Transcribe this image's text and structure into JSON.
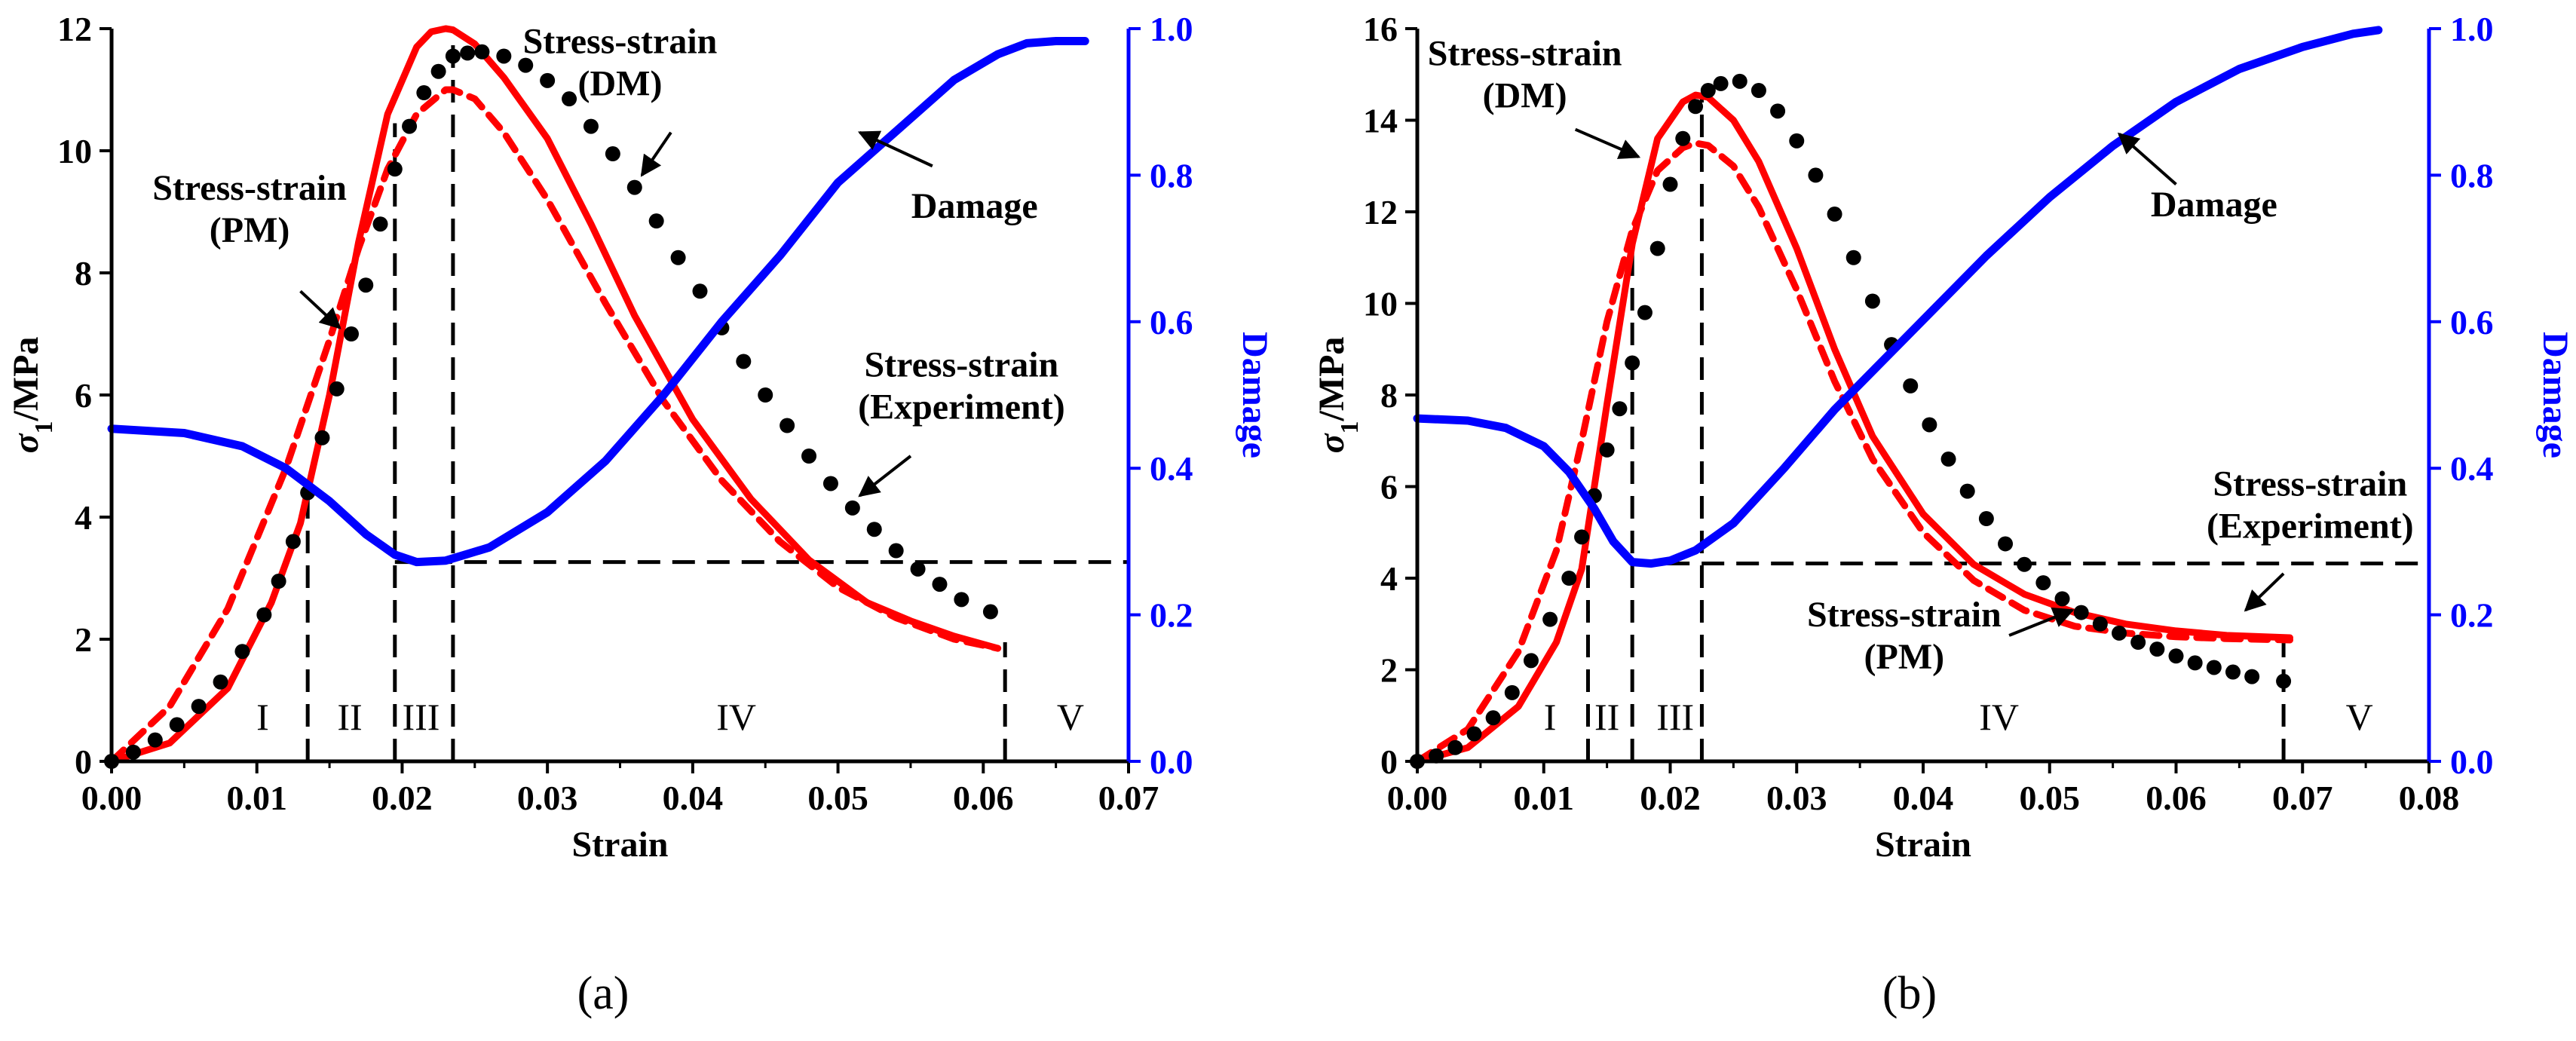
{
  "colors": {
    "model_dm": "#ff0000",
    "model_pm": "#ff0000",
    "experiment": "#000000",
    "damage": "#0000ff",
    "guides": "#000000"
  },
  "chart_data": [
    {
      "type": "line",
      "panel_label": "(a)",
      "xlabel": "Strain",
      "ylabel_main": "σ",
      "ylabel_sub": "1",
      "ylabel_unit": "/MPa",
      "y2label": "Damage",
      "xlim": [
        0,
        0.07
      ],
      "ylim": [
        0,
        12
      ],
      "y2lim": [
        0,
        1.0
      ],
      "xticks": [
        "0.00",
        "0.01",
        "0.02",
        "0.03",
        "0.04",
        "0.05",
        "0.06",
        "0.07"
      ],
      "yticks": [
        "0",
        "2",
        "4",
        "6",
        "8",
        "10",
        "12"
      ],
      "y2ticks": [
        "0.0",
        "0.2",
        "0.4",
        "0.6",
        "0.8",
        "1.0"
      ],
      "series": [
        {
          "key": "dm",
          "style": "solid",
          "axis": "left",
          "x": [
            0,
            0.004,
            0.008,
            0.011,
            0.013,
            0.015,
            0.017,
            0.019,
            0.021,
            0.022,
            0.023,
            0.0235,
            0.025,
            0.027,
            0.03,
            0.033,
            0.036,
            0.04,
            0.044,
            0.048,
            0.052,
            0.055,
            0.058,
            0.061
          ],
          "y": [
            0,
            0.3,
            1.2,
            2.6,
            3.9,
            6.0,
            8.5,
            10.6,
            11.7,
            11.95,
            12.0,
            11.98,
            11.75,
            11.2,
            10.2,
            8.8,
            7.3,
            5.6,
            4.3,
            3.3,
            2.6,
            2.3,
            2.05,
            1.85
          ]
        },
        {
          "key": "pm",
          "style": "dashed",
          "axis": "left",
          "x": [
            0,
            0.004,
            0.008,
            0.012,
            0.015,
            0.017,
            0.019,
            0.021,
            0.023,
            0.0235,
            0.025,
            0.027,
            0.03,
            0.034,
            0.038,
            0.042,
            0.046,
            0.05,
            0.054,
            0.058,
            0.061
          ],
          "y": [
            0,
            0.9,
            2.5,
            4.8,
            6.9,
            8.4,
            9.7,
            10.6,
            11.0,
            11.0,
            10.85,
            10.3,
            9.2,
            7.5,
            5.9,
            4.6,
            3.6,
            2.85,
            2.35,
            2.0,
            1.85
          ]
        },
        {
          "key": "experiment",
          "style": "dots",
          "axis": "left",
          "x": [
            0,
            0.0015,
            0.003,
            0.0045,
            0.006,
            0.0075,
            0.009,
            0.0105,
            0.0115,
            0.0125,
            0.0135,
            0.0145,
            0.0155,
            0.0165,
            0.0175,
            0.0185,
            0.0195,
            0.0205,
            0.0215,
            0.0225,
            0.0235,
            0.0245,
            0.0255,
            0.027,
            0.0285,
            0.03,
            0.0315,
            0.033,
            0.0345,
            0.036,
            0.0375,
            0.039,
            0.0405,
            0.042,
            0.0435,
            0.045,
            0.0465,
            0.048,
            0.0495,
            0.051,
            0.0525,
            0.054,
            0.0555,
            0.057,
            0.0585,
            0.0605
          ],
          "y": [
            0,
            0.15,
            0.35,
            0.6,
            0.9,
            1.3,
            1.8,
            2.4,
            2.95,
            3.6,
            4.4,
            5.3,
            6.1,
            7.0,
            7.8,
            8.8,
            9.7,
            10.4,
            10.95,
            11.3,
            11.55,
            11.6,
            11.62,
            11.55,
            11.4,
            11.15,
            10.85,
            10.4,
            9.95,
            9.4,
            8.85,
            8.25,
            7.7,
            7.1,
            6.55,
            6.0,
            5.5,
            5.0,
            4.55,
            4.15,
            3.8,
            3.45,
            3.15,
            2.9,
            2.65,
            2.45
          ]
        },
        {
          "key": "damage",
          "style": "solid",
          "axis": "right",
          "x": [
            0,
            0.005,
            0.009,
            0.012,
            0.015,
            0.0175,
            0.0195,
            0.021,
            0.023,
            0.026,
            0.03,
            0.034,
            0.038,
            0.042,
            0.046,
            0.05,
            0.054,
            0.058,
            0.061,
            0.063,
            0.065,
            0.067
          ],
          "y": [
            0.454,
            0.448,
            0.43,
            0.4,
            0.355,
            0.31,
            0.282,
            0.272,
            0.274,
            0.292,
            0.34,
            0.41,
            0.5,
            0.6,
            0.69,
            0.79,
            0.86,
            0.93,
            0.965,
            0.98,
            0.983,
            0.983
          ]
        }
      ],
      "guides": [
        {
          "type": "v",
          "x": 0.0135,
          "y_top": 4.6
        },
        {
          "type": "v",
          "x": 0.0195,
          "y_top": 10.45
        },
        {
          "type": "v",
          "x": 0.0235,
          "y_top": 11.98
        },
        {
          "type": "v",
          "x": 0.0615,
          "y_top": 1.95,
          "y_bottom": 0
        },
        {
          "type": "h",
          "y2": 0.272,
          "x_from": 0.0195,
          "x_to": 0.07
        }
      ],
      "stages": [
        {
          "label": "I",
          "x": 0.0104
        },
        {
          "label": "II",
          "x": 0.0164
        },
        {
          "label": "III",
          "x": 0.0213
        },
        {
          "label": "IV",
          "x": 0.043
        },
        {
          "label": "V",
          "x": 0.066
        }
      ],
      "annotations": [
        {
          "lines": [
            "Stress-strain",
            "(DM)"
          ],
          "text_x": 0.035,
          "text_y": 11.6,
          "arrow_to": [
            0.0365,
            9.6
          ],
          "arrow_from": [
            0.0385,
            10.3
          ]
        },
        {
          "lines": [
            "Stress-strain",
            "(PM)"
          ],
          "text_x": 0.0095,
          "text_y": 9.2,
          "arrow_to": [
            0.0157,
            7.1
          ],
          "arrow_from": [
            0.013,
            7.7
          ]
        },
        {
          "lines": [
            "Damage"
          ],
          "text_x": 0.0594,
          "text_y": 8.9,
          "arrow_to": [
            0.0515,
            10.3
          ],
          "arrow_from": [
            0.0565,
            9.75
          ]
        },
        {
          "lines": [
            "Stress-strain",
            "(Experiment)"
          ],
          "text_x": 0.0585,
          "text_y": 6.3,
          "arrow_to": [
            0.0515,
            4.35
          ],
          "arrow_from": [
            0.055,
            5.0
          ]
        }
      ]
    },
    {
      "type": "line",
      "panel_label": "(b)",
      "xlabel": "Strain",
      "ylabel_main": "σ",
      "ylabel_sub": "1",
      "ylabel_unit": "/MPa",
      "y2label": "Damage",
      "xlim": [
        0,
        0.08
      ],
      "ylim": [
        0,
        16
      ],
      "y2lim": [
        0,
        1.0
      ],
      "xticks": [
        "0.00",
        "0.01",
        "0.02",
        "0.03",
        "0.04",
        "0.05",
        "0.06",
        "0.07",
        "0.08"
      ],
      "yticks": [
        "0",
        "2",
        "4",
        "6",
        "8",
        "10",
        "12",
        "14",
        "16"
      ],
      "y2ticks": [
        "0.0",
        "0.2",
        "0.4",
        "0.6",
        "0.8",
        "1.0"
      ],
      "series": [
        {
          "key": "dm",
          "style": "solid",
          "axis": "left",
          "x": [
            0,
            0.004,
            0.008,
            0.011,
            0.013,
            0.015,
            0.017,
            0.019,
            0.021,
            0.022,
            0.023,
            0.025,
            0.027,
            0.03,
            0.033,
            0.036,
            0.04,
            0.044,
            0.048,
            0.052,
            0.056,
            0.06,
            0.064,
            0.069
          ],
          "y": [
            0,
            0.3,
            1.2,
            2.6,
            4.2,
            7.8,
            11.3,
            13.6,
            14.4,
            14.55,
            14.5,
            14.0,
            13.1,
            11.2,
            9.0,
            7.1,
            5.4,
            4.3,
            3.65,
            3.25,
            3.0,
            2.85,
            2.75,
            2.7
          ]
        },
        {
          "key": "pm",
          "style": "dashed",
          "axis": "left",
          "x": [
            0,
            0.004,
            0.008,
            0.011,
            0.013,
            0.015,
            0.017,
            0.019,
            0.021,
            0.022,
            0.023,
            0.025,
            0.027,
            0.03,
            0.033,
            0.036,
            0.04,
            0.044,
            0.048,
            0.052,
            0.056,
            0.06,
            0.064,
            0.069
          ],
          "y": [
            0,
            0.7,
            2.4,
            4.6,
            7.0,
            9.6,
            11.6,
            12.9,
            13.4,
            13.5,
            13.45,
            13.0,
            12.1,
            10.3,
            8.3,
            6.6,
            5.0,
            3.95,
            3.3,
            2.95,
            2.8,
            2.72,
            2.68,
            2.65
          ]
        },
        {
          "key": "experiment",
          "style": "dots",
          "axis": "left",
          "x": [
            0,
            0.0015,
            0.003,
            0.0045,
            0.006,
            0.0075,
            0.009,
            0.0105,
            0.012,
            0.013,
            0.014,
            0.015,
            0.016,
            0.017,
            0.018,
            0.019,
            0.02,
            0.021,
            0.022,
            0.023,
            0.024,
            0.0255,
            0.027,
            0.0285,
            0.03,
            0.0315,
            0.033,
            0.0345,
            0.036,
            0.0375,
            0.039,
            0.0405,
            0.042,
            0.0435,
            0.045,
            0.0465,
            0.048,
            0.0495,
            0.051,
            0.0525,
            0.054,
            0.0555,
            0.057,
            0.0585,
            0.06,
            0.0615,
            0.063,
            0.0645,
            0.066,
            0.0685
          ],
          "y": [
            0,
            0.12,
            0.3,
            0.6,
            0.95,
            1.5,
            2.2,
            3.1,
            4.0,
            4.9,
            5.8,
            6.8,
            7.7,
            8.7,
            9.8,
            11.2,
            12.6,
            13.6,
            14.3,
            14.65,
            14.8,
            14.85,
            14.65,
            14.2,
            13.55,
            12.8,
            11.95,
            11.0,
            10.05,
            9.1,
            8.2,
            7.35,
            6.6,
            5.9,
            5.3,
            4.75,
            4.3,
            3.9,
            3.55,
            3.25,
            3.0,
            2.8,
            2.6,
            2.45,
            2.3,
            2.15,
            2.05,
            1.95,
            1.85,
            1.75
          ]
        },
        {
          "key": "damage",
          "style": "solid",
          "axis": "right",
          "x": [
            0,
            0.004,
            0.007,
            0.01,
            0.012,
            0.014,
            0.0155,
            0.017,
            0.0185,
            0.02,
            0.022,
            0.025,
            0.029,
            0.033,
            0.037,
            0.041,
            0.045,
            0.05,
            0.055,
            0.06,
            0.065,
            0.07,
            0.074,
            0.076
          ],
          "y": [
            0.468,
            0.465,
            0.455,
            0.43,
            0.395,
            0.345,
            0.3,
            0.272,
            0.27,
            0.274,
            0.288,
            0.325,
            0.4,
            0.48,
            0.55,
            0.62,
            0.69,
            0.77,
            0.84,
            0.9,
            0.945,
            0.975,
            0.993,
            0.998
          ]
        }
      ],
      "guides": [
        {
          "type": "v",
          "x": 0.0135,
          "y_top": 4.6
        },
        {
          "type": "v",
          "x": 0.017,
          "y_top": 11.35
        },
        {
          "type": "v",
          "x": 0.0225,
          "y_top": 14.55
        },
        {
          "type": "v",
          "x": 0.0685,
          "y_top": 2.7,
          "y_bottom": 0
        },
        {
          "type": "h",
          "y2": 0.27,
          "x_from": 0.017,
          "x_to": 0.08
        }
      ],
      "stages": [
        {
          "label": "I",
          "x": 0.0105
        },
        {
          "label": "II",
          "x": 0.015
        },
        {
          "label": "III",
          "x": 0.0204
        },
        {
          "label": "IV",
          "x": 0.046
        },
        {
          "label": "V",
          "x": 0.0745
        }
      ],
      "annotations": [
        {
          "lines": [
            "Stress-strain",
            "(DM)"
          ],
          "text_x": 0.0085,
          "text_y": 15.2,
          "arrow_to": [
            0.0175,
            13.2
          ],
          "arrow_from": [
            0.0125,
            13.8
          ]
        },
        {
          "lines": [
            "Damage"
          ],
          "text_x": 0.063,
          "text_y": 11.9,
          "arrow_to": [
            0.0555,
            13.7
          ],
          "arrow_from": [
            0.06,
            12.6
          ]
        },
        {
          "lines": [
            "Stress-strain",
            "(Experiment)"
          ],
          "text_x": 0.0706,
          "text_y": 5.8,
          "arrow_to": [
            0.0655,
            3.3
          ],
          "arrow_from": [
            0.0685,
            4.1
          ]
        },
        {
          "lines": [
            "Stress-strain",
            "(PM)"
          ],
          "text_x": 0.0385,
          "text_y": 2.95,
          "arrow_to": [
            0.0518,
            3.3
          ],
          "arrow_from": [
            0.0468,
            2.75
          ]
        }
      ]
    }
  ]
}
